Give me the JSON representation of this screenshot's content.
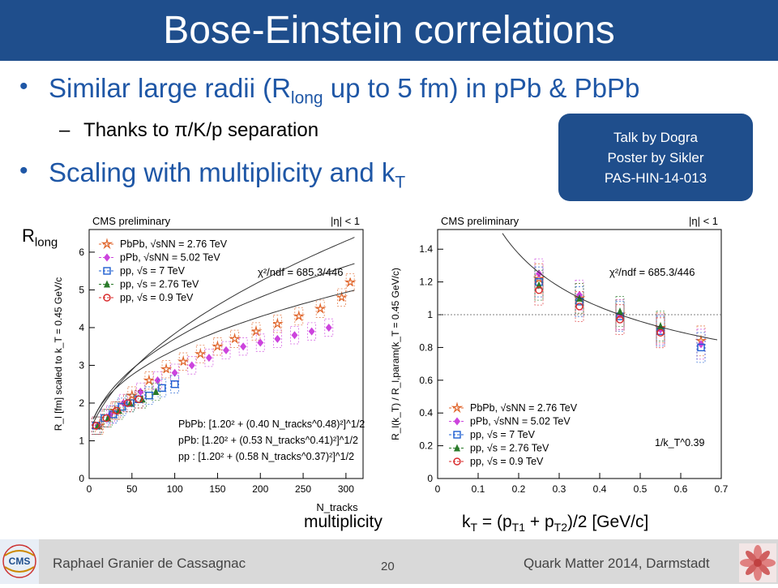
{
  "slide": {
    "title": "Bose-Einstein correlations",
    "bullet1": {
      "pre": "Similar large radii (R",
      "sub": "long",
      "post": " up to 5 fm) in pPb & PbPb"
    },
    "sub_bullet1": "Thanks to π/K/p separation",
    "sub_dash": "–",
    "bullet2": {
      "pre": "Scaling with multiplicity and k",
      "sub": "T"
    },
    "callout": [
      "Talk by Dogra",
      "Poster by Sikler",
      "PAS-HIN-14-013"
    ],
    "ylabel_overlay": {
      "pre": "R",
      "sub": "long"
    },
    "xlabel_left": "multiplicity",
    "xlabel_right": {
      "k": "k",
      "kT": "T",
      "eq": " = (p",
      "p1": "T1",
      "plus": " + p",
      "p2": "T2",
      "rest": ")/2 [GeV/c]"
    }
  },
  "footer": {
    "author": "Raphael Granier de Cassagnac",
    "page": "20",
    "conference": "Quark Matter 2014, Darmstadt"
  },
  "chart_data": [
    {
      "type": "scatter",
      "header_left": "CMS preliminary",
      "header_right": "|η| < 1",
      "xlabel": "N_tracks",
      "ylabel": "R_l [fm] scaled to k_T = 0.45 GeV/c",
      "xlim": [
        0,
        320
      ],
      "ylim": [
        0,
        6.6
      ],
      "xticks": [
        0,
        50,
        100,
        150,
        200,
        250,
        300
      ],
      "yticks": [
        0,
        1,
        2,
        3,
        4,
        5,
        6
      ],
      "chi2": "χ²/ndf = 685.3/446",
      "legend": [
        "PbPb, √sNN = 2.76 TeV",
        "pPb, √sNN = 5.02 TeV",
        "pp, √s = 7 TeV",
        "pp, √s = 2.76 TeV",
        "pp, √s = 0.9 TeV"
      ],
      "fits": [
        "PbPb: [1.20² + (0.40 N_tracks^0.48)²]^1/2",
        "pPb: [1.20² + (0.53 N_tracks^0.41)²]^1/2",
        "pp : [1.20² + (0.58 N_tracks^0.37)²]^1/2"
      ],
      "fit_params": [
        {
          "a": 0.4,
          "b": 0.48
        },
        {
          "a": 0.53,
          "b": 0.41
        },
        {
          "a": 0.58,
          "b": 0.37
        }
      ],
      "series": [
        {
          "name": "PbPb, √sNN = 2.76 TeV",
          "color": "#e0662c",
          "marker": "star",
          "points": [
            [
              12,
              1.4
            ],
            [
              30,
              1.8
            ],
            [
              50,
              2.2
            ],
            [
              70,
              2.6
            ],
            [
              90,
              2.9
            ],
            [
              110,
              3.1
            ],
            [
              130,
              3.3
            ],
            [
              150,
              3.5
            ],
            [
              170,
              3.7
            ],
            [
              195,
              3.9
            ],
            [
              220,
              4.1
            ],
            [
              245,
              4.3
            ],
            [
              270,
              4.5
            ],
            [
              295,
              4.8
            ],
            [
              305,
              5.2
            ]
          ]
        },
        {
          "name": "pPb, √sNN = 5.02 TeV",
          "color": "#cc44dd",
          "marker": "diamond",
          "points": [
            [
              10,
              1.4
            ],
            [
              25,
              1.7
            ],
            [
              40,
              2.0
            ],
            [
              60,
              2.3
            ],
            [
              80,
              2.6
            ],
            [
              100,
              2.8
            ],
            [
              120,
              3.0
            ],
            [
              140,
              3.2
            ],
            [
              160,
              3.4
            ],
            [
              180,
              3.5
            ],
            [
              200,
              3.6
            ],
            [
              220,
              3.7
            ],
            [
              240,
              3.8
            ],
            [
              260,
              3.9
            ],
            [
              280,
              4.0
            ]
          ]
        },
        {
          "name": "pp, √s = 7 TeV",
          "color": "#1f5fd1",
          "marker": "square",
          "points": [
            [
              8,
              1.4
            ],
            [
              18,
              1.6
            ],
            [
              28,
              1.7
            ],
            [
              38,
              1.9
            ],
            [
              48,
              2.0
            ],
            [
              58,
              2.1
            ],
            [
              70,
              2.2
            ],
            [
              85,
              2.4
            ],
            [
              100,
              2.5
            ]
          ]
        },
        {
          "name": "pp, √s = 2.76 TeV",
          "color": "#2a7a2a",
          "marker": "triangle",
          "points": [
            [
              10,
              1.4
            ],
            [
              22,
              1.6
            ],
            [
              35,
              1.8
            ],
            [
              48,
              2.0
            ],
            [
              62,
              2.1
            ],
            [
              78,
              2.3
            ]
          ]
        },
        {
          "name": "pp, √s = 0.9 TeV",
          "color": "#d8282a",
          "marker": "circle",
          "points": [
            [
              8,
              1.4
            ],
            [
              20,
              1.6
            ],
            [
              32,
              1.8
            ],
            [
              45,
              2.0
            ],
            [
              58,
              2.1
            ]
          ]
        }
      ]
    },
    {
      "type": "scatter",
      "header_left": "CMS preliminary",
      "header_right": "|η| < 1",
      "xlabel": "k_T = (p_T1 + p_T2)/2 [GeV/c]",
      "ylabel": "R_l(k_T) / R_l,param(k_T = 0.45 GeV/c)",
      "xlim": [
        0,
        0.7
      ],
      "ylim": [
        0,
        1.52
      ],
      "xticks": [
        0,
        0.1,
        0.2,
        0.3,
        0.4,
        0.5,
        0.6,
        0.7
      ],
      "yticks": [
        0,
        0.2,
        0.4,
        0.6,
        0.8,
        1,
        1.2,
        1.4
      ],
      "chi2": "χ²/ndf = 685.3/446",
      "fit_label": "1/k_T^0.39",
      "fit_exponent": 0.39,
      "legend": [
        "PbPb, √sNN = 2.76 TeV",
        "pPb, √sNN = 5.02 TeV",
        "pp, √s = 7 TeV",
        "pp, √s = 2.76 TeV",
        "pp, √s = 0.9 TeV"
      ],
      "series": [
        {
          "name": "PbPb, √sNN = 2.76 TeV",
          "color": "#e0662c",
          "marker": "star",
          "points": [
            [
              0.25,
              1.22
            ],
            [
              0.35,
              1.1
            ],
            [
              0.45,
              1.0
            ],
            [
              0.55,
              0.92
            ],
            [
              0.65,
              0.84
            ]
          ]
        },
        {
          "name": "pPb, √sNN = 5.02 TeV",
          "color": "#cc44dd",
          "marker": "diamond",
          "points": [
            [
              0.25,
              1.25
            ],
            [
              0.35,
              1.12
            ],
            [
              0.45,
              1.0
            ],
            [
              0.55,
              0.91
            ],
            [
              0.65,
              0.82
            ]
          ]
        },
        {
          "name": "pp, √s = 7 TeV",
          "color": "#1f5fd1",
          "marker": "square",
          "points": [
            [
              0.25,
              1.2
            ],
            [
              0.35,
              1.08
            ],
            [
              0.45,
              0.99
            ],
            [
              0.55,
              0.9
            ],
            [
              0.65,
              0.8
            ]
          ]
        },
        {
          "name": "pp, √s = 2.76 TeV",
          "color": "#2a7a2a",
          "marker": "triangle",
          "points": [
            [
              0.25,
              1.18
            ],
            [
              0.35,
              1.1
            ],
            [
              0.45,
              1.02
            ],
            [
              0.55,
              0.93
            ]
          ]
        },
        {
          "name": "pp, √s = 0.9 TeV",
          "color": "#d8282a",
          "marker": "circle",
          "points": [
            [
              0.25,
              1.15
            ],
            [
              0.35,
              1.05
            ],
            [
              0.45,
              0.97
            ],
            [
              0.55,
              0.89
            ]
          ]
        }
      ]
    }
  ]
}
